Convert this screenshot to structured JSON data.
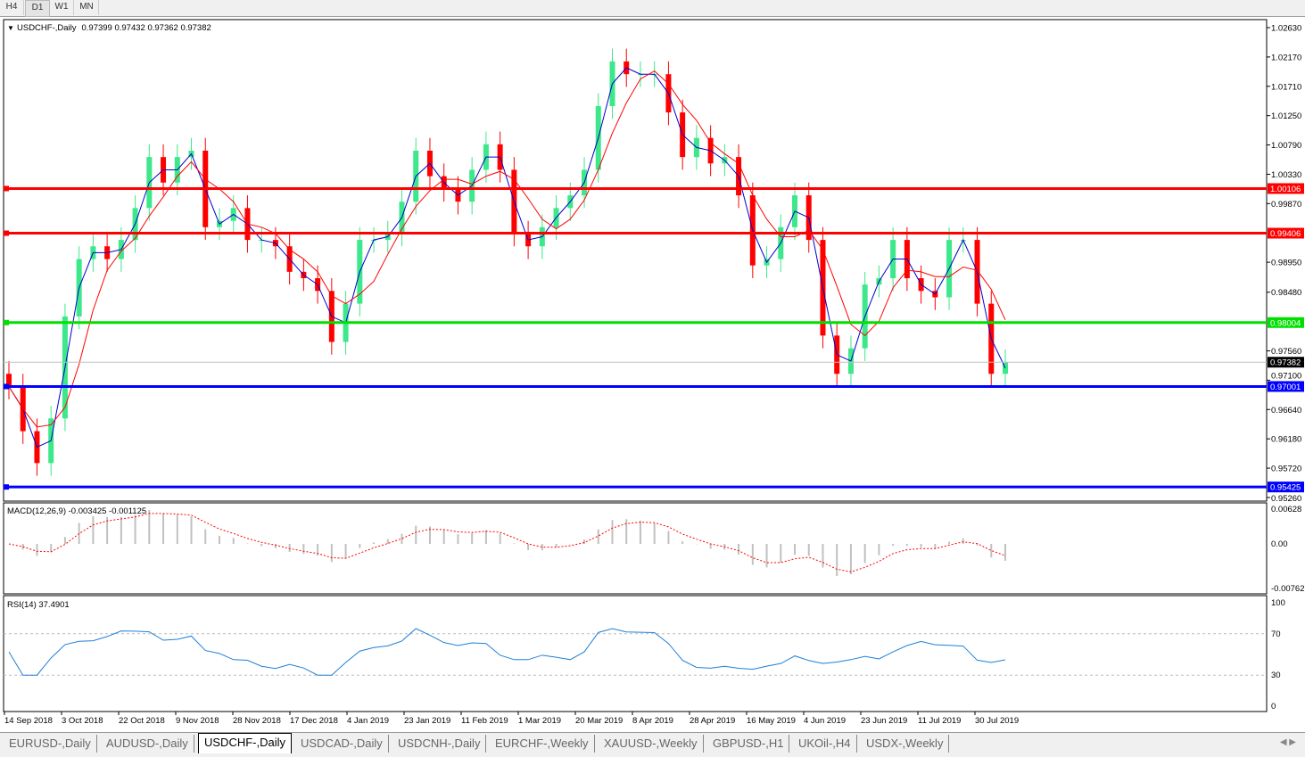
{
  "timeframes": [
    "H4",
    "D1",
    "W1",
    "MN"
  ],
  "active_timeframe": "D1",
  "header": {
    "symbol": "USDCHF-,Daily",
    "ohlc": "0.97399 0.97432 0.97362 0.97382"
  },
  "macd": {
    "label": "MACD(12,26,9) -0.003425 -0.001125",
    "ticks": [
      "0.00628",
      "0.00",
      "-0.00762"
    ]
  },
  "rsi": {
    "label": "RSI(14) 37.4901",
    "ticks": [
      "100",
      "70",
      "30",
      "0"
    ]
  },
  "tabs": [
    "EURUSD-,Daily",
    "AUDUSD-,Daily",
    "USDCHF-,Daily",
    "USDCAD-,Daily",
    "USDCNH-,Daily",
    "EURCHF-,Weekly",
    "XAUUSD-,Weekly",
    "GBPUSD-,H1",
    "UKOil-,H4",
    "USDX-,Weekly"
  ],
  "active_tab": "USDCHF-,Daily",
  "colors": {
    "bull": "#3ce88a",
    "bear": "#ff0000",
    "ma_fast": "#0000cc",
    "ma_slow": "#ff0000",
    "macd_hist": "#c0c0c0",
    "macd_signal": "#ff0000",
    "rsi": "#1e7fd8"
  },
  "chart_data": {
    "type": "candlestick",
    "symbol": "USDCHF",
    "ylim": [
      0.9526,
      1.0263
    ],
    "y_ticks": [
      "1.02630",
      "1.02170",
      "1.01710",
      "1.01250",
      "1.00790",
      "1.00330",
      "0.99870",
      "0.98950",
      "0.98480",
      "0.97560",
      "0.97100",
      "0.96640",
      "0.96180",
      "0.95720",
      "0.95260"
    ],
    "x_ticks": [
      "14 Sep 2018",
      "3 Oct 2018",
      "22 Oct 2018",
      "9 Nov 2018",
      "28 Nov 2018",
      "17 Dec 2018",
      "4 Jan 2019",
      "23 Jan 2019",
      "11 Feb 2019",
      "1 Mar 2019",
      "20 Mar 2019",
      "8 Apr 2019",
      "28 Apr 2019",
      "16 May 2019",
      "4 Jun 2019",
      "23 Jun 2019",
      "11 Jul 2019",
      "30 Jul 2019"
    ],
    "closes": [
      0.97,
      0.963,
      0.958,
      0.965,
      0.981,
      0.99,
      0.992,
      0.99,
      0.993,
      0.998,
      1.006,
      1.002,
      1.006,
      1.007,
      0.995,
      0.996,
      0.998,
      0.993,
      0.993,
      0.992,
      0.988,
      0.987,
      0.985,
      0.977,
      0.983,
      0.993,
      0.993,
      0.994,
      0.999,
      1.007,
      1.003,
      1.001,
      0.999,
      1.004,
      1.008,
      1.004,
      0.994,
      0.992,
      0.995,
      0.998,
      1.0,
      1.004,
      1.014,
      1.021,
      1.019,
      1.019,
      1.019,
      1.013,
      1.006,
      1.009,
      1.005,
      1.006,
      1.0,
      0.989,
      0.99,
      0.995,
      1.0,
      0.993,
      0.978,
      0.972,
      0.976,
      0.986,
      0.987,
      0.993,
      0.987,
      0.985,
      0.984,
      0.993,
      0.993,
      0.983,
      0.972,
      0.97382
    ],
    "levels": [
      {
        "value": "1.00106",
        "color": "#ff0000"
      },
      {
        "value": "0.99406",
        "color": "#ff0000"
      },
      {
        "value": "0.98004",
        "color": "#00e000"
      },
      {
        "value": "0.97001",
        "color": "#0000ff"
      },
      {
        "value": "0.95425",
        "color": "#0000ff"
      }
    ],
    "current_price": "0.97382"
  }
}
